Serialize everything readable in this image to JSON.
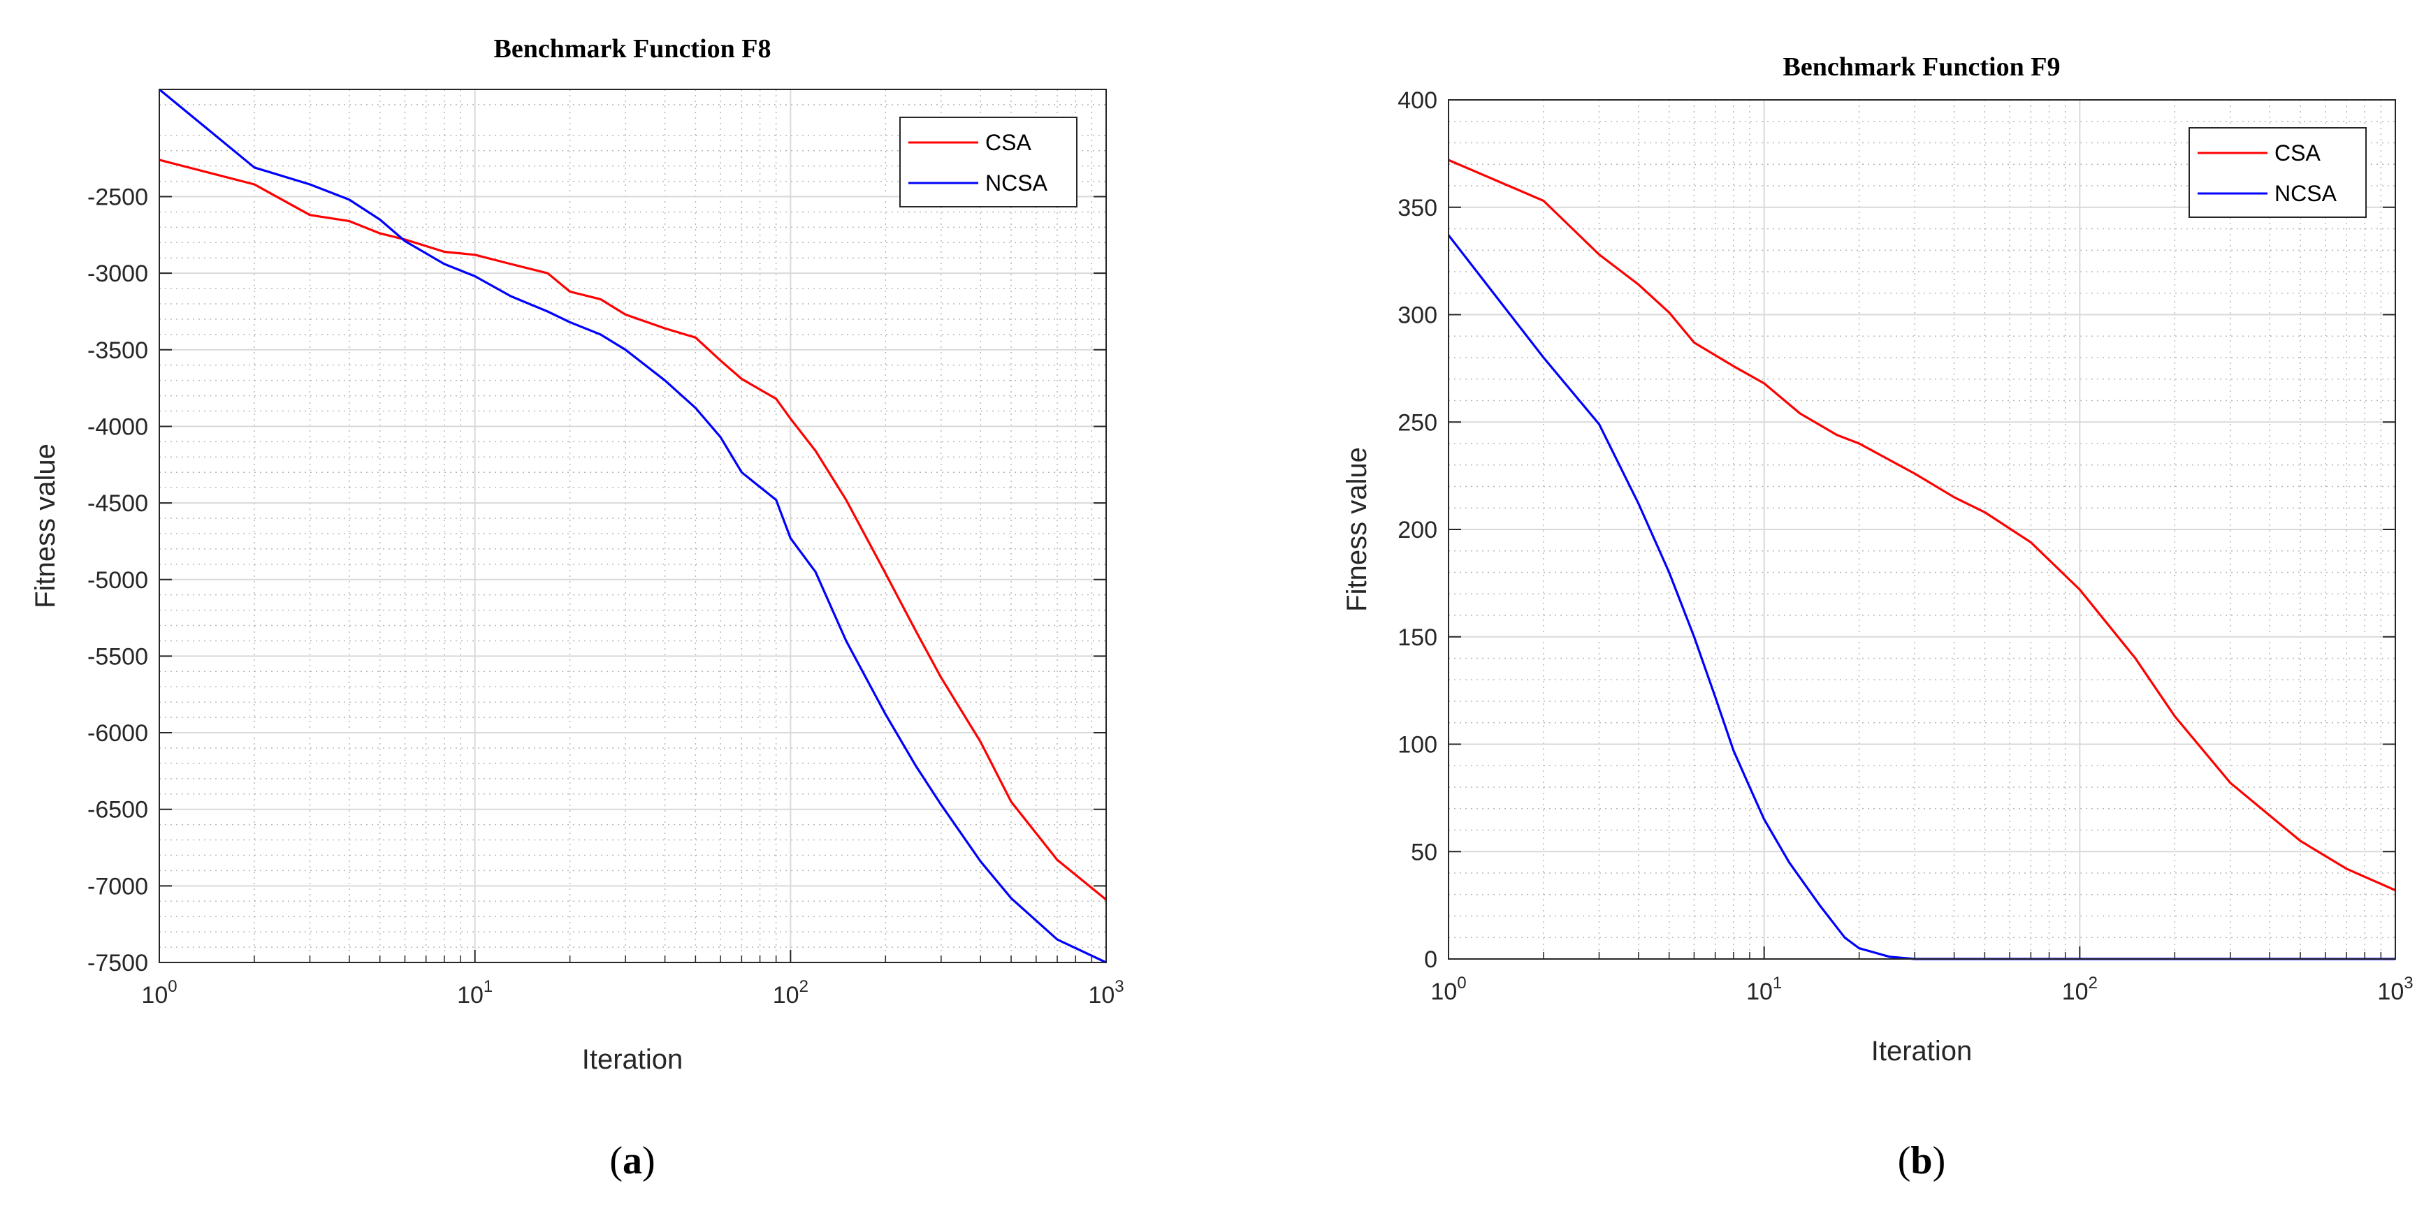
{
  "chart_data": [
    {
      "type": "line",
      "panel": "(a)",
      "caption_letter": "a",
      "title": "Benchmark Function F8",
      "xlabel": "Iteration",
      "ylabel": "Fitness value",
      "xscale": "log",
      "xlim": [
        1,
        1000
      ],
      "ylim": [
        -7500,
        -1800
      ],
      "xticks": [
        {
          "base": "10",
          "exp": "0",
          "value": 1
        },
        {
          "base": "10",
          "exp": "1",
          "value": 10
        },
        {
          "base": "10",
          "exp": "2",
          "value": 100
        },
        {
          "base": "10",
          "exp": "3",
          "value": 1000
        }
      ],
      "yticks": [
        -2500,
        -3000,
        -3500,
        -4000,
        -4500,
        -5000,
        -5500,
        -6000,
        -6500,
        -7000,
        -7500
      ],
      "grid": true,
      "legend_position": "top-right",
      "series": [
        {
          "name": "CSA",
          "color": "#ff0000",
          "x": [
            1,
            2,
            3,
            4,
            5,
            6,
            8,
            10,
            13,
            17,
            20,
            25,
            30,
            40,
            50,
            60,
            70,
            90,
            100,
            120,
            150,
            200,
            250,
            300,
            400,
            500,
            700,
            1000
          ],
          "y": [
            -2260,
            -2420,
            -2620,
            -2660,
            -2740,
            -2780,
            -2860,
            -2880,
            -2940,
            -3000,
            -3120,
            -3170,
            -3270,
            -3360,
            -3420,
            -3570,
            -3690,
            -3820,
            -3950,
            -4160,
            -4480,
            -4960,
            -5340,
            -5640,
            -6060,
            -6450,
            -6830,
            -7090
          ]
        },
        {
          "name": "NCSA",
          "color": "#0000ff",
          "x": [
            1,
            2,
            3,
            4,
            5,
            6,
            8,
            10,
            13,
            17,
            20,
            25,
            30,
            40,
            50,
            60,
            70,
            90,
            100,
            120,
            150,
            200,
            250,
            300,
            400,
            500,
            700,
            1000
          ],
          "y": [
            -1800,
            -2310,
            -2420,
            -2520,
            -2650,
            -2790,
            -2940,
            -3020,
            -3150,
            -3250,
            -3320,
            -3400,
            -3500,
            -3700,
            -3880,
            -4070,
            -4300,
            -4480,
            -4730,
            -4950,
            -5400,
            -5880,
            -6220,
            -6470,
            -6840,
            -7080,
            -7350,
            -7500
          ]
        }
      ]
    },
    {
      "type": "line",
      "panel": "(b)",
      "caption_letter": "b",
      "title": "Benchmark Function F9",
      "xlabel": "Iteration",
      "ylabel": "Fitness value",
      "xscale": "log",
      "xlim": [
        1,
        1000
      ],
      "ylim": [
        0,
        400
      ],
      "xticks": [
        {
          "base": "10",
          "exp": "0",
          "value": 1
        },
        {
          "base": "10",
          "exp": "1",
          "value": 10
        },
        {
          "base": "10",
          "exp": "2",
          "value": 100
        },
        {
          "base": "10",
          "exp": "3",
          "value": 1000
        }
      ],
      "yticks": [
        0,
        50,
        100,
        150,
        200,
        250,
        300,
        350,
        400
      ],
      "grid": true,
      "legend_position": "top-right",
      "series": [
        {
          "name": "CSA",
          "color": "#ff0000",
          "x": [
            1,
            2,
            3,
            4,
            5,
            6,
            8,
            10,
            13,
            17,
            20,
            30,
            40,
            50,
            70,
            100,
            150,
            200,
            300,
            500,
            700,
            1000
          ],
          "y": [
            372,
            353,
            328,
            314,
            301,
            287,
            276,
            268,
            254,
            244,
            240,
            226,
            215,
            208,
            194,
            172,
            140,
            113,
            82,
            55,
            42,
            32
          ]
        },
        {
          "name": "NCSA",
          "color": "#0000ff",
          "x": [
            1,
            2,
            3,
            4,
            5,
            6,
            7,
            8,
            9,
            10,
            12,
            15,
            18,
            20,
            25,
            30,
            50,
            100,
            1000
          ],
          "y": [
            337,
            280,
            249,
            212,
            180,
            150,
            122,
            97,
            80,
            65,
            45,
            25,
            10,
            5,
            1,
            0,
            0,
            0,
            0
          ]
        }
      ]
    }
  ]
}
